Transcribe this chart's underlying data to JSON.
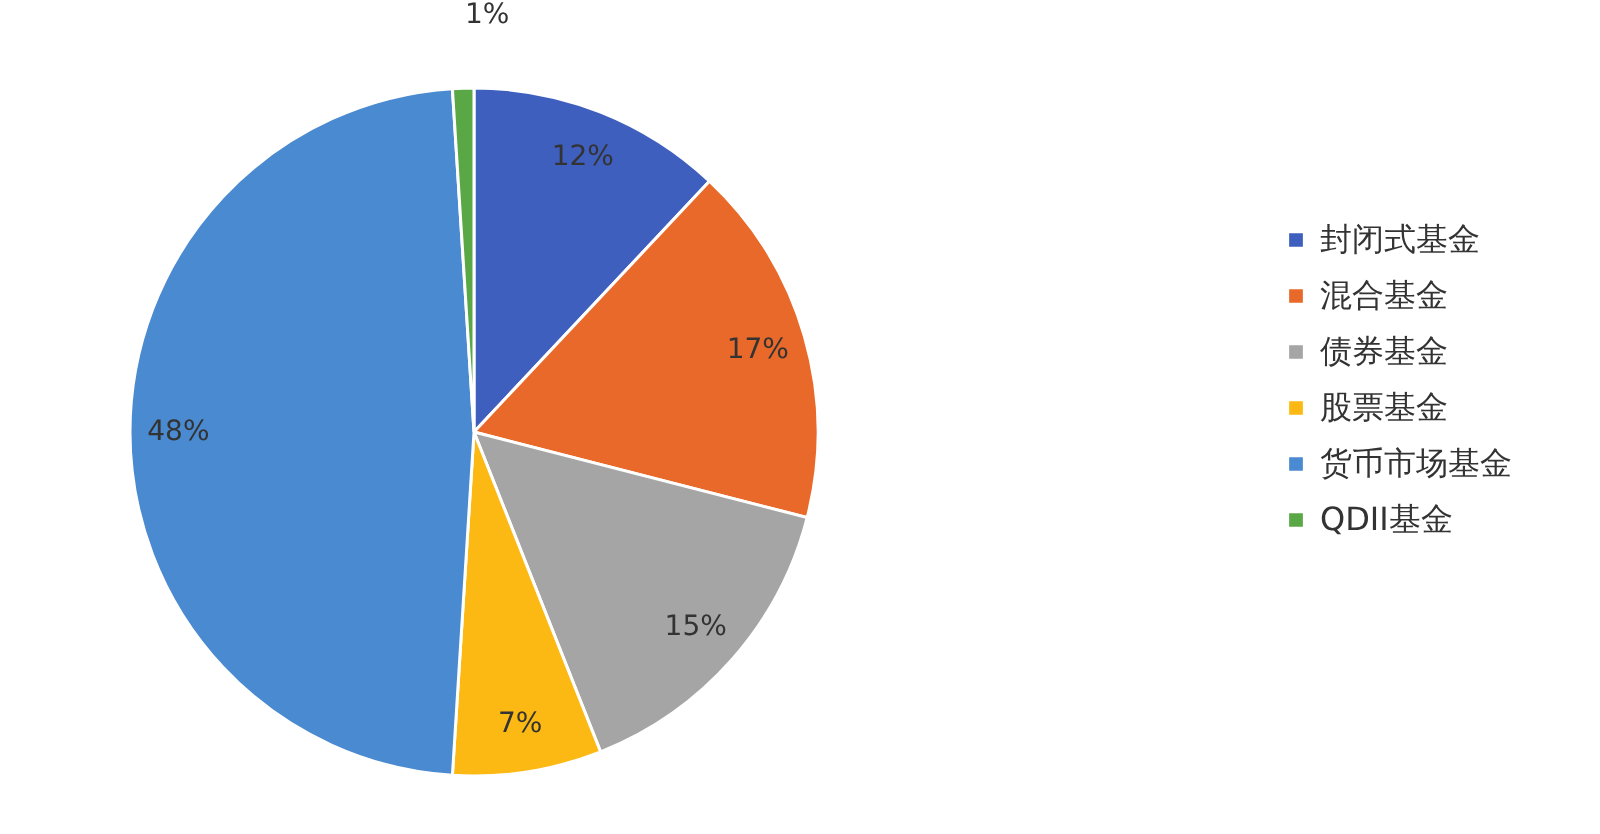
{
  "chart_data": {
    "type": "pie",
    "categories": [
      "封闭式基金",
      "混合基金",
      "债券基金",
      "股票基金",
      "货币市场基金",
      "QDII基金"
    ],
    "values": [
      12,
      17,
      15,
      7,
      48,
      1
    ],
    "colors": [
      "#3f5fbf",
      "#e8692a",
      "#a5a5a5",
      "#fdb913",
      "#4a8ad0",
      "#5aa845"
    ],
    "value_labels": [
      "12%",
      "17%",
      "15%",
      "7%",
      "48%",
      "1%"
    ],
    "legend": "right"
  }
}
